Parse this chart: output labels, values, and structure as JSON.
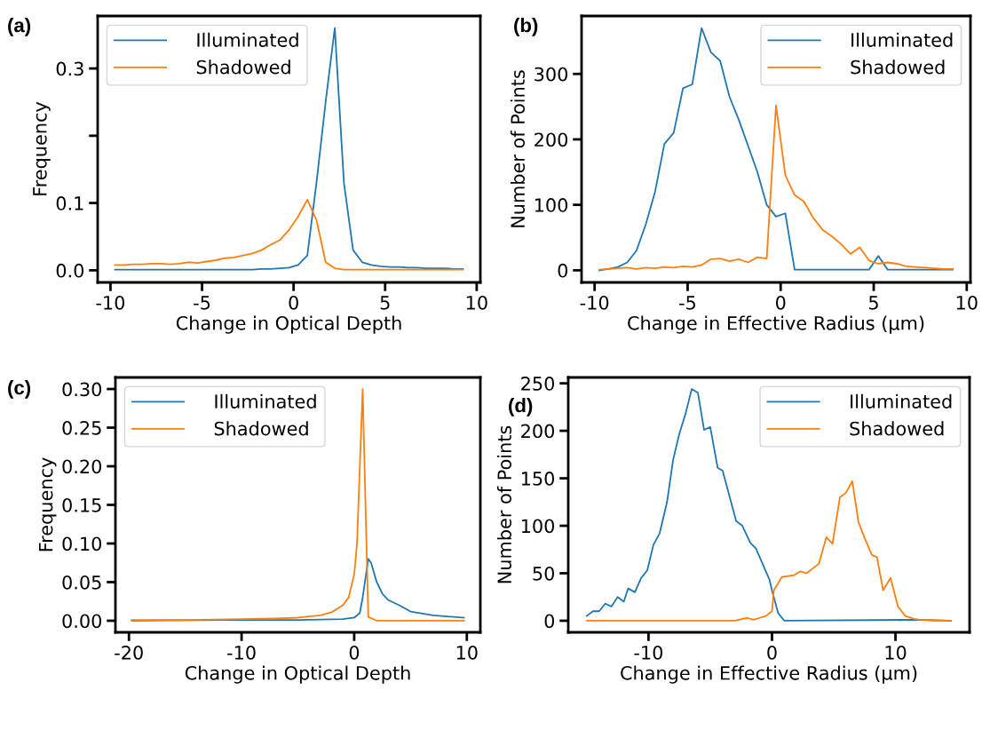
{
  "chart_data": [
    {
      "type": "line",
      "title": "(a)",
      "xlabel": "Change in Optical Depth",
      "ylabel": "Frequency",
      "legend": "top left",
      "grid": false,
      "x": [
        -9.75,
        -9.25,
        -8.75,
        -8.25,
        -7.75,
        -7.25,
        -6.75,
        -6.25,
        -5.75,
        -5.25,
        -4.75,
        -4.25,
        -3.75,
        -3.25,
        -2.75,
        -2.25,
        -1.75,
        -1.25,
        -0.75,
        -0.25,
        0.25,
        0.75,
        1.25,
        1.75,
        2.25,
        2.75,
        3.25,
        3.75,
        4.25,
        4.75,
        5.25,
        5.75,
        6.25,
        6.75,
        7.25,
        7.75,
        8.25,
        8.75,
        9.25
      ],
      "xlim": [
        -10.7,
        10.2
      ],
      "xticks": [
        -10,
        -5,
        0,
        5,
        10
      ],
      "ylim": [
        -0.018,
        0.378
      ],
      "yticks": [
        {
          "value": 0.0,
          "label": "0.0"
        },
        {
          "value": 0.1,
          "label": "0.1"
        },
        {
          "value": 0.2,
          "label": null
        },
        {
          "value": 0.3,
          "label": "0.3"
        }
      ],
      "series": [
        {
          "name": "Illuminated",
          "color": "#1f77b4",
          "values": [
            0.001,
            0.001,
            0.001,
            0.001,
            0.001,
            0.001,
            0.001,
            0.001,
            0.001,
            0.001,
            0.001,
            0.001,
            0.001,
            0.001,
            0.001,
            0.001,
            0.002,
            0.002,
            0.003,
            0.004,
            0.008,
            0.022,
            0.13,
            0.25,
            0.36,
            0.13,
            0.03,
            0.012,
            0.008,
            0.006,
            0.005,
            0.005,
            0.004,
            0.004,
            0.003,
            0.003,
            0.003,
            0.002,
            0.002
          ]
        },
        {
          "name": "Shadowed",
          "color": "#ff7f0e",
          "values": [
            0.008,
            0.008,
            0.009,
            0.009,
            0.01,
            0.01,
            0.009,
            0.01,
            0.012,
            0.011,
            0.013,
            0.015,
            0.018,
            0.019,
            0.022,
            0.025,
            0.03,
            0.038,
            0.045,
            0.06,
            0.08,
            0.105,
            0.075,
            0.012,
            0.003,
            0.001,
            0.001,
            0.001,
            0.001,
            0.001,
            0.001,
            0.001,
            0.001,
            0.001,
            0.001,
            0.001,
            0.001,
            0.001,
            0.001
          ]
        }
      ]
    },
    {
      "type": "line",
      "title": "(b)",
      "xlabel": "Change in Effective Radius (μm)",
      "ylabel": "Number of Points",
      "legend": "top right",
      "grid": false,
      "x": [
        -9.75,
        -9.25,
        -8.75,
        -8.25,
        -7.75,
        -7.25,
        -6.75,
        -6.25,
        -5.75,
        -5.25,
        -4.75,
        -4.25,
        -3.75,
        -3.25,
        -2.75,
        -2.25,
        -1.75,
        -1.25,
        -0.75,
        -0.25,
        0.25,
        0.75,
        1.25,
        1.75,
        2.25,
        2.75,
        3.25,
        3.75,
        4.25,
        4.75,
        5.25,
        5.75,
        6.25,
        6.75,
        7.25,
        7.75,
        8.25,
        8.75,
        9.25
      ],
      "xlim": [
        -10.7,
        10.2
      ],
      "xticks": [
        -10,
        -5,
        0,
        5,
        10
      ],
      "ylim": [
        -18.5,
        388.5
      ],
      "yticks": [
        0,
        100,
        200,
        300
      ],
      "series": [
        {
          "name": "Illuminated",
          "color": "#1f77b4",
          "values": [
            0,
            2,
            5,
            12,
            30,
            70,
            120,
            193,
            210,
            278,
            284,
            370,
            333,
            320,
            265,
            230,
            190,
            150,
            100,
            82,
            87,
            1,
            1,
            1,
            1,
            1,
            1,
            1,
            1,
            1,
            22,
            1,
            1,
            1,
            1,
            1,
            1,
            1,
            1
          ]
        },
        {
          "name": "Shadowed",
          "color": "#ff7f0e",
          "values": [
            1,
            2,
            3,
            4,
            2,
            4,
            3,
            5,
            4,
            6,
            5,
            8,
            17,
            18,
            14,
            17,
            12,
            20,
            18,
            252,
            145,
            115,
            105,
            80,
            62,
            52,
            40,
            25,
            35,
            15,
            10,
            12,
            10,
            6,
            5,
            4,
            3,
            2,
            2
          ]
        }
      ]
    },
    {
      "type": "line",
      "title": "(c)",
      "xlabel": "Change in Optical Depth",
      "ylabel": "Frequency",
      "legend": "top left",
      "grid": false,
      "xlim": [
        -21.2,
        11.2
      ],
      "xticks": [
        -20,
        -10,
        0,
        10
      ],
      "ylim": [
        -0.015,
        0.315
      ],
      "yticks": [
        {
          "value": 0.0,
          "label": "0.00"
        },
        {
          "value": 0.05,
          "label": "0.05"
        },
        {
          "value": 0.1,
          "label": "0.10"
        },
        {
          "value": 0.15,
          "label": "0.15"
        },
        {
          "value": 0.2,
          "label": "0.20"
        },
        {
          "value": 0.25,
          "label": "0.25"
        },
        {
          "value": 0.3,
          "label": "0.30"
        }
      ],
      "series": [
        {
          "name": "Illuminated",
          "color": "#1f77b4",
          "x": [
            -19.75,
            -10,
            -5,
            -1,
            0,
            0.5,
            0.75,
            1.25,
            1.5,
            2,
            2.5,
            3,
            4,
            5,
            7,
            9.75
          ],
          "values": [
            0,
            0.001,
            0.001,
            0.002,
            0.004,
            0.01,
            0.03,
            0.08,
            0.075,
            0.05,
            0.035,
            0.027,
            0.02,
            0.012,
            0.007,
            0.004
          ]
        },
        {
          "name": "Shadowed",
          "color": "#ff7f0e",
          "x": [
            -19.75,
            -15,
            -10,
            -7,
            -5,
            -3,
            -2,
            -1,
            -0.5,
            0,
            0.25,
            0.75,
            1.25,
            2,
            5,
            9.75
          ],
          "values": [
            0.001,
            0.001,
            0.002,
            0.003,
            0.004,
            0.007,
            0.011,
            0.02,
            0.03,
            0.06,
            0.1,
            0.3,
            0.005,
            0,
            0,
            0
          ]
        }
      ]
    },
    {
      "type": "line",
      "title": "(d)",
      "xlabel": "Change in Effective Radius (μm)",
      "ylabel": "Number of Points",
      "legend": "top right",
      "grid": false,
      "xlim": [
        -16.5,
        16.0
      ],
      "xticks": [
        -10,
        0,
        10
      ],
      "ylim": [
        -12.2,
        256.2
      ],
      "yticks": [
        0,
        50,
        100,
        150,
        200,
        250
      ],
      "series": [
        {
          "name": "Illuminated",
          "color": "#1f77b4",
          "x": [
            -15,
            -14.5,
            -14,
            -13.5,
            -13,
            -12.5,
            -12,
            -11.65,
            -11.1,
            -10.6,
            -10.1,
            -9.6,
            -9.1,
            -8.5,
            -8,
            -7.5,
            -7,
            -6.5,
            -6,
            -5.5,
            -5,
            -4.4,
            -4,
            -2.9,
            -2.4,
            -1.75,
            -1.3,
            -0.2,
            0,
            0.5,
            1,
            12,
            14.5
          ],
          "values": [
            5,
            10,
            10,
            18,
            15,
            25,
            20,
            34,
            30,
            45,
            53,
            80,
            92,
            125,
            170,
            197,
            218,
            244,
            240,
            201,
            204,
            161,
            158,
            105,
            100,
            82,
            76,
            43,
            32,
            8,
            0,
            1,
            0
          ]
        },
        {
          "name": "Shadowed",
          "color": "#ff7f0e",
          "x": [
            -15,
            -3,
            -2,
            -1.5,
            -1,
            -0.5,
            0,
            0.15,
            0.8,
            1.3,
            1.8,
            2.3,
            2.8,
            3.3,
            3.8,
            4.4,
            4.9,
            5.5,
            6,
            6.5,
            7,
            7.5,
            8.1,
            8.5,
            9,
            9.6,
            10.2,
            10.8,
            11.5,
            12,
            13,
            14.5
          ],
          "values": [
            0,
            0,
            3,
            1,
            3,
            5,
            10,
            32,
            46,
            47,
            48,
            52,
            50,
            55,
            60,
            88,
            81,
            130,
            135,
            147,
            104,
            87,
            69,
            67,
            32,
            45,
            15,
            5,
            2,
            1,
            0,
            0
          ]
        }
      ]
    }
  ]
}
